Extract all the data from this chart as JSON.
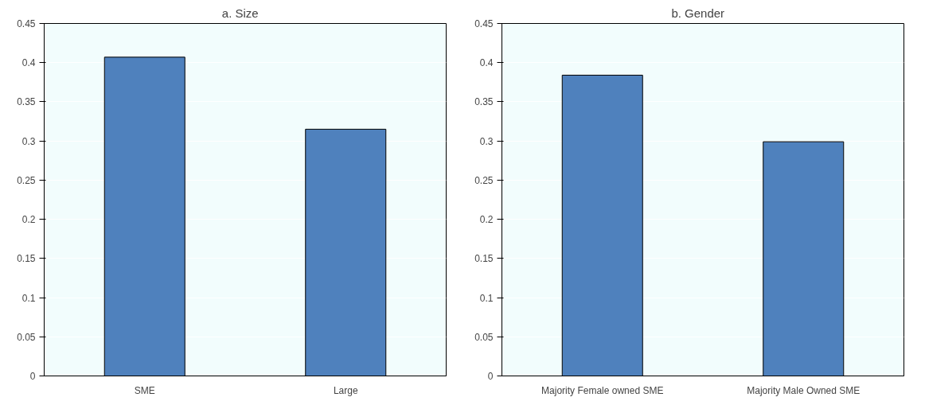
{
  "chart_data": [
    {
      "type": "bar",
      "title": "a.    Size",
      "categories": [
        "SME",
        "Large"
      ],
      "values": [
        0.407,
        0.315
      ],
      "color": "#4f81bd",
      "ylim": [
        0,
        0.45
      ],
      "yticks": [
        0,
        0.05,
        0.1,
        0.15,
        0.2,
        0.25,
        0.3,
        0.35,
        0.4,
        0.45
      ],
      "grid": "y"
    },
    {
      "type": "bar",
      "title": "b.    Gender",
      "categories": [
        "Majority Female owned SME",
        "Majority Male Owned SME"
      ],
      "values": [
        0.384,
        0.299
      ],
      "color": "#4f81bd",
      "ylim": [
        0,
        0.45
      ],
      "yticks": [
        0,
        0.05,
        0.1,
        0.15,
        0.2,
        0.25,
        0.3,
        0.35,
        0.4,
        0.45
      ],
      "grid": "y"
    }
  ]
}
